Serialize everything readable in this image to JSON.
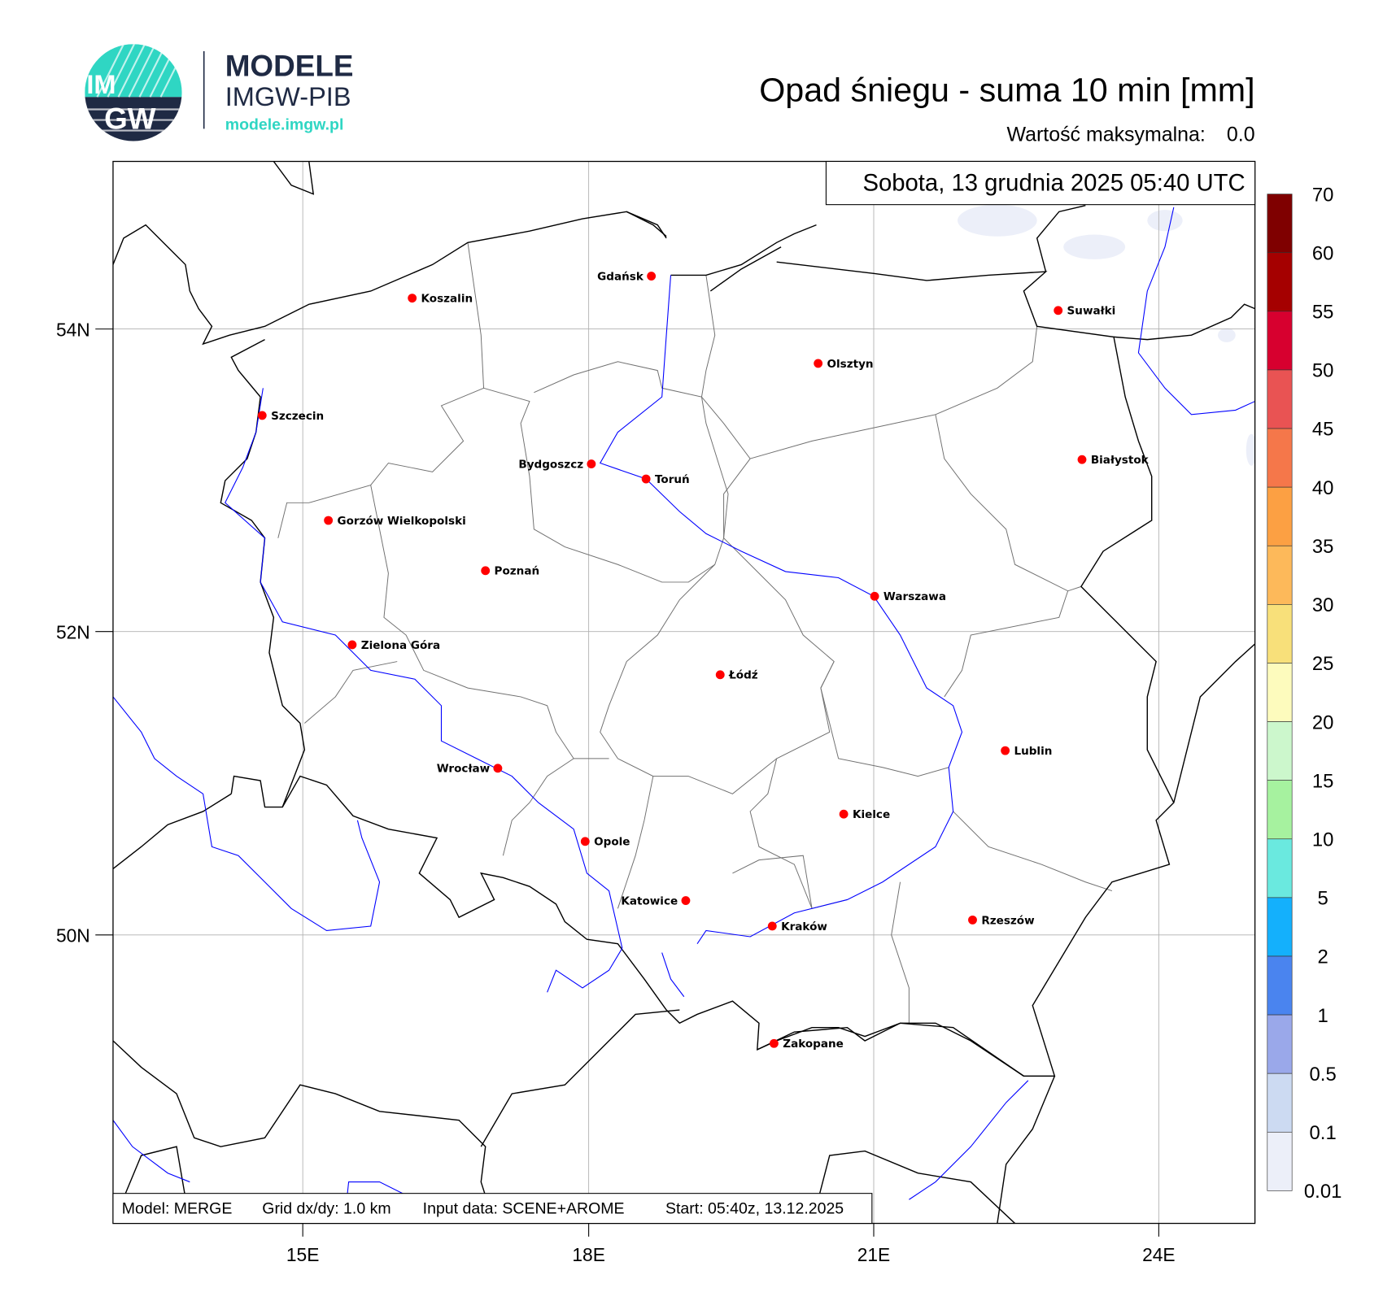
{
  "logo": {
    "brand": "MODELE",
    "org": "IMGW-PIB",
    "url": "modele.imgw.pl",
    "badge_top": "IM",
    "badge_bottom": "GW",
    "colors": {
      "navy": "#1f2a44",
      "teal": "#2fd6c3"
    }
  },
  "header": {
    "title": "Opad śniegu - suma 10 min [mm]",
    "max_label": "Wartość maksymalna:",
    "max_value": "0.0"
  },
  "date_box": "Sobota, 13 grudnia 2025 05:40 UTC",
  "footer": {
    "model": "Model: MERGE",
    "grid": "Grid dx/dy: 1.0 km",
    "input": "Input data: SCENE+AROME",
    "start": "Start: 05:40z, 13.12.2025"
  },
  "axes": {
    "lat_ticks": [
      "54N",
      "52N",
      "50N"
    ],
    "lon_ticks": [
      "15E",
      "18E",
      "21E",
      "24E"
    ]
  },
  "cities": [
    "Gdańsk",
    "Koszalin",
    "Suwałki",
    "Olsztyn",
    "Szczecin",
    "Białystok",
    "Bydgoszcz",
    "Toruń",
    "Gorzów Wielkopolski",
    "Poznań",
    "Warszawa",
    "Zielona Góra",
    "Łódź",
    "Lublin",
    "Wrocław",
    "Kielce",
    "Opole",
    "Katowice",
    "Rzeszów",
    "Kraków",
    "Zakopane"
  ],
  "colorbar": {
    "labels": [
      "70",
      "60",
      "55",
      "50",
      "45",
      "40",
      "35",
      "30",
      "25",
      "20",
      "15",
      "10",
      "5",
      "2",
      "1",
      "0.5",
      "0.1",
      "0.01"
    ],
    "colors": [
      "#7f0000",
      "#a50000",
      "#d7002f",
      "#e95353",
      "#f5774a",
      "#fca043",
      "#fdb95a",
      "#f8e07a",
      "#fdfbbd",
      "#ccf7cc",
      "#a6f29f",
      "#6ae9df",
      "#14b0fc",
      "#4a84ef",
      "#9aa8ea",
      "#ccdaf2",
      "#eceff9"
    ]
  },
  "map_colors": {
    "border": "#000000",
    "river": "#0000ff",
    "admin": "#808080",
    "snow": "#eceff9"
  }
}
